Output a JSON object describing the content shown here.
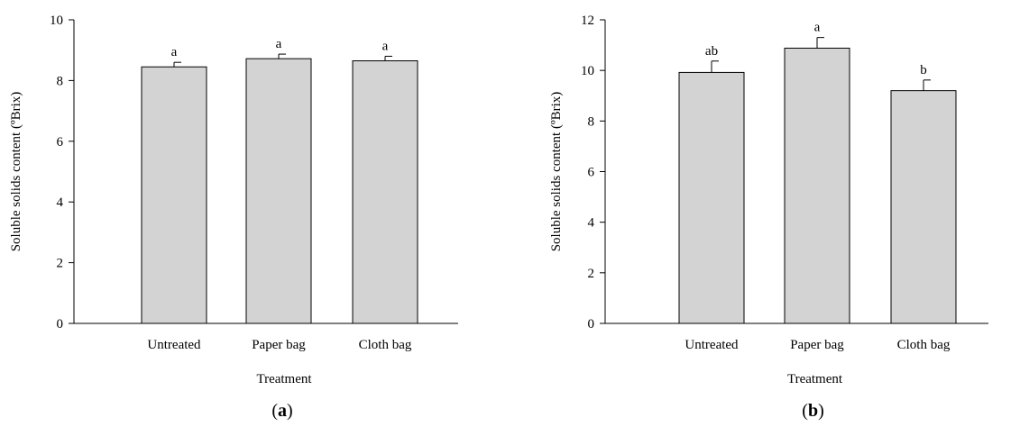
{
  "chart_data": [
    {
      "type": "bar",
      "panel_label": "a",
      "categories": [
        "Untreated",
        "Paper bag",
        "Cloth bag"
      ],
      "values": [
        8.45,
        8.72,
        8.65
      ],
      "errors": [
        0.15,
        0.15,
        0.15
      ],
      "significance": [
        "a",
        "a",
        "a"
      ],
      "xlabel": "Treatment",
      "ylabel": "Soluble solids content (ºBrix)",
      "ylim": [
        0,
        10
      ],
      "yticks": [
        0,
        2,
        4,
        6,
        8,
        10
      ],
      "bar_color": "#d3d3d3",
      "grid": false
    },
    {
      "type": "bar",
      "panel_label": "b",
      "categories": [
        "Untreated",
        "Paper bag",
        "Cloth bag"
      ],
      "values": [
        9.92,
        10.88,
        9.2
      ],
      "errors": [
        0.45,
        0.42,
        0.42
      ],
      "significance": [
        "ab",
        "a",
        "b"
      ],
      "xlabel": "Treatment",
      "ylabel": "Soluble solids content (ºBrix)",
      "ylim": [
        0,
        12
      ],
      "yticks": [
        0,
        2,
        4,
        6,
        8,
        10,
        12
      ],
      "bar_color": "#d3d3d3",
      "grid": false
    }
  ]
}
